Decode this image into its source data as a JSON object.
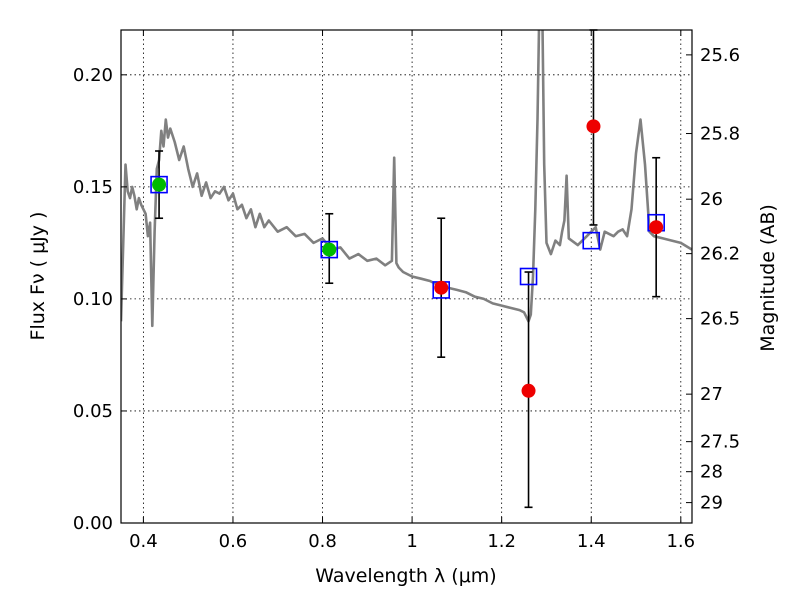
{
  "chart_data": {
    "type": "scatter",
    "xlabel": "Wavelength  λ (μm)",
    "ylabel": "Flux  Fν  ( μJy )",
    "ylabel_right": "Magnitude (AB)",
    "xlim": [
      0.35,
      1.625
    ],
    "ylim": [
      0.0,
      0.22
    ],
    "grid": true,
    "x_ticks": [
      0.4,
      0.6,
      0.8,
      1.0,
      1.2,
      1.4,
      1.6
    ],
    "x_tick_labels": [
      "0.4",
      "0.6",
      "0.8",
      "1",
      "1.2",
      "1.4",
      "1.6"
    ],
    "y_ticks": [
      0.0,
      0.05,
      0.1,
      0.15,
      0.2
    ],
    "y_tick_labels": [
      "0.00",
      "0.05",
      "0.10",
      "0.15",
      "0.20"
    ],
    "mag_ticks": [
      {
        "label": "25.6",
        "flux": 0.2089
      },
      {
        "label": "25.8",
        "flux": 0.1738
      },
      {
        "label": "26",
        "flux": 0.1445
      },
      {
        "label": "26.2",
        "flux": 0.1202
      },
      {
        "label": "26.5",
        "flux": 0.0912
      },
      {
        "label": "27",
        "flux": 0.0575
      },
      {
        "label": "27.5",
        "flux": 0.0363
      },
      {
        "label": "28",
        "flux": 0.0229
      },
      {
        "label": "29",
        "flux": 0.0091
      }
    ],
    "series": [
      {
        "kind": "line",
        "color": "#808080",
        "x": [
          0.35,
          0.36,
          0.365,
          0.37,
          0.375,
          0.38,
          0.385,
          0.39,
          0.395,
          0.4,
          0.405,
          0.41,
          0.415,
          0.42,
          0.425,
          0.43,
          0.435,
          0.44,
          0.445,
          0.45,
          0.455,
          0.46,
          0.47,
          0.48,
          0.49,
          0.5,
          0.51,
          0.52,
          0.53,
          0.54,
          0.55,
          0.56,
          0.57,
          0.58,
          0.59,
          0.6,
          0.61,
          0.62,
          0.63,
          0.64,
          0.65,
          0.66,
          0.67,
          0.68,
          0.7,
          0.72,
          0.74,
          0.76,
          0.78,
          0.8,
          0.82,
          0.84,
          0.86,
          0.88,
          0.9,
          0.92,
          0.94,
          0.955,
          0.96,
          0.965,
          0.97,
          0.98,
          1.0,
          1.02,
          1.04,
          1.06,
          1.08,
          1.1,
          1.12,
          1.14,
          1.16,
          1.18,
          1.2,
          1.22,
          1.24,
          1.25,
          1.255,
          1.26,
          1.265,
          1.27,
          1.275,
          1.28,
          1.285,
          1.29,
          1.295,
          1.3,
          1.31,
          1.32,
          1.33,
          1.335,
          1.34,
          1.345,
          1.35,
          1.37,
          1.39,
          1.4,
          1.41,
          1.42,
          1.43,
          1.44,
          1.45,
          1.46,
          1.47,
          1.48,
          1.49,
          1.5,
          1.51,
          1.52,
          1.53,
          1.54,
          1.56,
          1.58,
          1.6,
          1.625
        ],
        "y": [
          0.09,
          0.16,
          0.148,
          0.145,
          0.15,
          0.146,
          0.14,
          0.145,
          0.142,
          0.14,
          0.138,
          0.128,
          0.134,
          0.088,
          0.13,
          0.158,
          0.162,
          0.175,
          0.168,
          0.18,
          0.172,
          0.176,
          0.17,
          0.162,
          0.168,
          0.158,
          0.15,
          0.156,
          0.146,
          0.152,
          0.145,
          0.148,
          0.147,
          0.15,
          0.144,
          0.147,
          0.14,
          0.142,
          0.136,
          0.14,
          0.132,
          0.138,
          0.132,
          0.135,
          0.13,
          0.132,
          0.128,
          0.129,
          0.125,
          0.127,
          0.122,
          0.123,
          0.118,
          0.12,
          0.117,
          0.118,
          0.115,
          0.117,
          0.163,
          0.116,
          0.114,
          0.112,
          0.11,
          0.109,
          0.108,
          0.106,
          0.105,
          0.104,
          0.103,
          0.101,
          0.1,
          0.098,
          0.097,
          0.096,
          0.095,
          0.094,
          0.092,
          0.09,
          0.093,
          0.11,
          0.14,
          0.18,
          0.24,
          0.24,
          0.16,
          0.125,
          0.12,
          0.126,
          0.124,
          0.13,
          0.135,
          0.155,
          0.127,
          0.124,
          0.128,
          0.13,
          0.132,
          0.122,
          0.13,
          0.129,
          0.128,
          0.13,
          0.131,
          0.128,
          0.14,
          0.165,
          0.18,
          0.16,
          0.13,
          0.128,
          0.127,
          0.126,
          0.125,
          0.122
        ]
      },
      {
        "kind": "box",
        "color": "#0000ff",
        "x": [
          0.435,
          0.815,
          1.065,
          1.26,
          1.4,
          1.545
        ],
        "y": [
          0.151,
          0.122,
          0.104,
          0.11,
          0.126,
          0.134
        ]
      },
      {
        "kind": "points",
        "color": "#00bb00",
        "x": [
          0.435,
          0.815
        ],
        "y": [
          0.151,
          0.122
        ],
        "err": [
          [
            0.136,
            0.166
          ],
          [
            0.107,
            0.138
          ]
        ]
      },
      {
        "kind": "points",
        "color": "#ee0000",
        "x": [
          1.065,
          1.26,
          1.405,
          1.545
        ],
        "y": [
          0.105,
          0.059,
          0.177,
          0.132
        ],
        "err": [
          [
            0.074,
            0.136
          ],
          [
            0.007,
            0.112
          ],
          [
            0.133,
            0.22
          ],
          [
            0.101,
            0.163
          ]
        ]
      }
    ]
  }
}
